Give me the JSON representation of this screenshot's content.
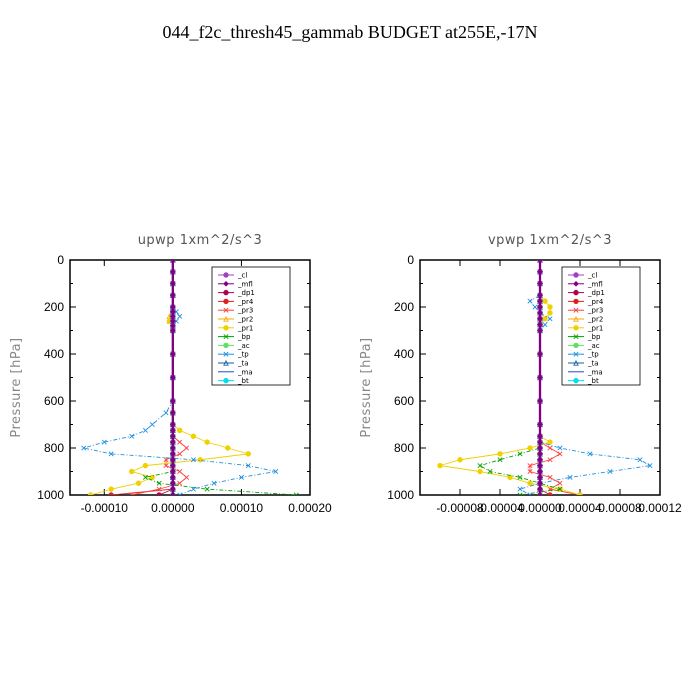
{
  "title": "044_f2c_thresh45_gammab  BUDGET at255E,-17N",
  "chart_data": [
    {
      "type": "line",
      "title": "upwp   1xm^2/s^3",
      "ylabel": "Pressure [hPa]",
      "xlabel": "",
      "xlim": [
        -0.00015,
        0.0002
      ],
      "ylim": [
        1000,
        0
      ],
      "xticks": [
        -0.0001,
        0.0,
        0.0001,
        0.0002
      ],
      "xtick_labels": [
        "-0.00010",
        "0.00000",
        "0.00010",
        "0.00020"
      ],
      "yticks": [
        0,
        200,
        400,
        600,
        800,
        1000
      ],
      "ytick_labels": [
        "0",
        "200",
        "400",
        "600",
        "800",
        "1000"
      ],
      "legend_position": "top-right",
      "y": [
        0,
        50,
        100,
        150,
        200,
        220,
        240,
        260,
        280,
        300,
        400,
        500,
        600,
        650,
        700,
        725,
        750,
        775,
        800,
        825,
        850,
        875,
        900,
        925,
        950,
        975,
        1000
      ],
      "series": [
        {
          "name": "_cl",
          "color": "#a040c0",
          "values": [
            0,
            0,
            0,
            0,
            0,
            0,
            0,
            0,
            0,
            0,
            0,
            0,
            0,
            0,
            0,
            0,
            0,
            0,
            0,
            0,
            0,
            0,
            0,
            0,
            0,
            0,
            0
          ]
        },
        {
          "name": "_mfl",
          "color": "#800080",
          "values": [
            0,
            0,
            0,
            0,
            0,
            0,
            0,
            0,
            0,
            0,
            0,
            0,
            0,
            0,
            0,
            0,
            0,
            0,
            0,
            0,
            0,
            0,
            0,
            0,
            0,
            0,
            0
          ]
        },
        {
          "name": "_dp1",
          "color": "#b00050",
          "values": [
            0,
            0,
            0,
            0,
            0,
            0,
            0,
            0,
            0,
            0,
            0,
            0,
            0,
            0,
            0,
            0,
            0,
            0,
            0,
            0,
            0,
            0,
            0,
            0,
            0,
            0,
            -2e-05
          ]
        },
        {
          "name": "_pr4",
          "color": "#e02020",
          "values": [
            0,
            0,
            0,
            0,
            0,
            0,
            0,
            0,
            0,
            0,
            0,
            0,
            0,
            0,
            0,
            0,
            0,
            0,
            0,
            0,
            0,
            0,
            0,
            0,
            0,
            0,
            -9e-05
          ]
        },
        {
          "name": "_pr3",
          "color": "#ff4040",
          "values": [
            0,
            0,
            0,
            0,
            0,
            0,
            0,
            0,
            0,
            0,
            0,
            0,
            0,
            0,
            0,
            0,
            0,
            1e-05,
            2e-05,
            1e-05,
            -1e-05,
            -1e-05,
            1e-05,
            2e-05,
            1e-05,
            -2e-05,
            -6e-05
          ]
        },
        {
          "name": "_pr2",
          "color": "#ffa500",
          "values": [
            0,
            0,
            0,
            0,
            0,
            0,
            -5e-06,
            -5e-06,
            0,
            0,
            0,
            0,
            0,
            0,
            0,
            0,
            0,
            0,
            0,
            0,
            0,
            0,
            0,
            0,
            0,
            0,
            0
          ]
        },
        {
          "name": "_pr1",
          "color": "#f0d000",
          "values": [
            0,
            0,
            0,
            0,
            0,
            0,
            0,
            -5e-06,
            0,
            0,
            0,
            0,
            0,
            0,
            0,
            1e-05,
            3e-05,
            5e-05,
            8e-05,
            0.00011,
            4e-05,
            -4e-05,
            -6e-05,
            -3e-05,
            -5e-05,
            -9e-05,
            -0.00012
          ]
        },
        {
          "name": "_bp",
          "color": "#00a000",
          "values": [
            0,
            0,
            0,
            0,
            0,
            0,
            0,
            0,
            0,
            0,
            0,
            0,
            0,
            0,
            0,
            0,
            0,
            0,
            0,
            0,
            0,
            0,
            0,
            -4e-05,
            -2e-05,
            5e-05,
            0.00018
          ]
        },
        {
          "name": "_ac",
          "color": "#60e060",
          "values": [
            0,
            0,
            0,
            0,
            0,
            0,
            0,
            0,
            0,
            0,
            0,
            0,
            0,
            0,
            0,
            0,
            0,
            0,
            0,
            0,
            0,
            0,
            0,
            0,
            0,
            0,
            0
          ]
        },
        {
          "name": "_tp",
          "color": "#2090e0",
          "values": [
            0,
            0,
            0,
            0,
            0,
            5e-06,
            1e-05,
            5e-06,
            0,
            0,
            0,
            0,
            0,
            -1e-05,
            -3e-05,
            -4e-05,
            -6e-05,
            -0.0001,
            -0.00013,
            -9e-05,
            3e-05,
            0.00011,
            0.00015,
            0.0001,
            6e-05,
            3e-05,
            1e-05
          ]
        },
        {
          "name": "_ta",
          "color": "#1060a0",
          "values": [
            0,
            0,
            0,
            0,
            0,
            0,
            0,
            0,
            0,
            0,
            0,
            0,
            0,
            0,
            0,
            0,
            0,
            0,
            0,
            0,
            0,
            0,
            0,
            0,
            0,
            0,
            0
          ]
        },
        {
          "name": "_ma",
          "color": "#2050c0",
          "values": [
            0,
            0,
            0,
            0,
            0,
            0,
            0,
            0,
            0,
            0,
            0,
            0,
            0,
            0,
            0,
            0,
            0,
            0,
            0,
            0,
            0,
            0,
            0,
            0,
            0,
            0,
            0
          ]
        },
        {
          "name": "_bt",
          "color": "#00e0f0",
          "values": [
            0,
            0,
            0,
            0,
            0,
            0,
            0,
            0,
            0,
            0,
            0,
            0,
            0,
            0,
            0,
            0,
            0,
            0,
            0,
            0,
            0,
            0,
            0,
            0,
            0,
            0,
            0
          ]
        }
      ]
    },
    {
      "type": "line",
      "title": "vpwp   1xm^2/s^3",
      "ylabel": "Pressure [hPa]",
      "xlabel": "",
      "xlim": [
        -0.00012,
        0.00012
      ],
      "ylim": [
        1000,
        0
      ],
      "xticks": [
        -8e-05,
        -4e-05,
        0.0,
        4e-05,
        8e-05,
        0.00012
      ],
      "xtick_labels": [
        "-0.00008",
        "-0.00004",
        "0.00000",
        "0.00004",
        "0.00008",
        "0.00012"
      ],
      "yticks": [
        0,
        200,
        400,
        600,
        800,
        1000
      ],
      "ytick_labels": [
        "0",
        "200",
        "400",
        "600",
        "800",
        "1000"
      ],
      "legend_position": "top-right",
      "y": [
        0,
        50,
        100,
        150,
        175,
        200,
        225,
        250,
        275,
        300,
        400,
        500,
        600,
        700,
        750,
        775,
        800,
        825,
        850,
        875,
        900,
        925,
        950,
        975,
        1000
      ],
      "series": [
        {
          "name": "_cl",
          "color": "#a040c0",
          "values": [
            0,
            0,
            0,
            0,
            0,
            0,
            0,
            0,
            0,
            0,
            0,
            0,
            0,
            0,
            0,
            0,
            0,
            0,
            0,
            0,
            0,
            0,
            0,
            0,
            0
          ]
        },
        {
          "name": "_mfl",
          "color": "#800080",
          "values": [
            0,
            0,
            0,
            0,
            0,
            0,
            0,
            0,
            0,
            0,
            0,
            0,
            0,
            0,
            0,
            0,
            0,
            0,
            0,
            0,
            0,
            0,
            0,
            0,
            0
          ]
        },
        {
          "name": "_dp1",
          "color": "#b00050",
          "values": [
            0,
            0,
            0,
            0,
            0,
            0,
            0,
            0,
            0,
            0,
            0,
            0,
            0,
            0,
            0,
            0,
            0,
            0,
            0,
            0,
            0,
            0,
            0,
            0,
            0
          ]
        },
        {
          "name": "_pr4",
          "color": "#e02020",
          "values": [
            0,
            0,
            0,
            0,
            0,
            0,
            0,
            0,
            0,
            0,
            0,
            0,
            0,
            0,
            0,
            0,
            0,
            0,
            0,
            0,
            0,
            0,
            0,
            0,
            1e-05
          ]
        },
        {
          "name": "_pr3",
          "color": "#ff4040",
          "values": [
            0,
            0,
            0,
            0,
            0,
            0,
            0,
            0,
            0,
            0,
            0,
            0,
            0,
            0,
            0,
            0,
            1e-05,
            2e-05,
            1e-05,
            -1e-05,
            -1e-05,
            1e-05,
            2e-05,
            1e-05,
            4e-05
          ]
        },
        {
          "name": "_pr2",
          "color": "#ffa500",
          "values": [
            0,
            0,
            0,
            0,
            0,
            0,
            0,
            0,
            0,
            0,
            0,
            0,
            0,
            0,
            0,
            0,
            0,
            0,
            0,
            0,
            0,
            0,
            0,
            0,
            0
          ]
        },
        {
          "name": "_pr1",
          "color": "#f0d000",
          "values": [
            0,
            0,
            0,
            0,
            5e-06,
            1e-05,
            1e-05,
            5e-06,
            0,
            0,
            0,
            0,
            0,
            0,
            0,
            1e-05,
            -1e-05,
            -4e-05,
            -8e-05,
            -0.0001,
            -6e-05,
            -3e-05,
            -1e-05,
            2e-05,
            4e-05
          ]
        },
        {
          "name": "_bp",
          "color": "#00a000",
          "values": [
            0,
            0,
            0,
            0,
            0,
            0,
            0,
            0,
            0,
            0,
            0,
            0,
            0,
            0,
            0,
            0,
            0,
            -2e-05,
            -4e-05,
            -6e-05,
            -5e-05,
            -2e-05,
            0,
            2e-05,
            -2e-05
          ]
        },
        {
          "name": "_ac",
          "color": "#60e060",
          "values": [
            0,
            0,
            0,
            0,
            0,
            0,
            0,
            0,
            0,
            0,
            0,
            0,
            0,
            0,
            0,
            0,
            0,
            0,
            0,
            0,
            0,
            0,
            0,
            0,
            0
          ]
        },
        {
          "name": "_tp",
          "color": "#2090e0",
          "values": [
            0,
            0,
            0,
            0,
            -1e-05,
            -5e-06,
            0,
            1e-05,
            5e-06,
            0,
            0,
            0,
            0,
            0,
            0,
            0,
            2e-05,
            5e-05,
            0.0001,
            0.00011,
            7e-05,
            3e-05,
            0,
            -2e-05,
            -1e-05
          ]
        },
        {
          "name": "_ta",
          "color": "#1060a0",
          "values": [
            0,
            0,
            0,
            0,
            0,
            0,
            0,
            0,
            0,
            0,
            0,
            0,
            0,
            0,
            0,
            0,
            0,
            0,
            0,
            0,
            0,
            0,
            0,
            0,
            0
          ]
        },
        {
          "name": "_ma",
          "color": "#2050c0",
          "values": [
            0,
            0,
            0,
            0,
            0,
            0,
            0,
            0,
            0,
            0,
            0,
            0,
            0,
            0,
            0,
            0,
            0,
            0,
            0,
            0,
            0,
            0,
            0,
            0,
            0
          ]
        },
        {
          "name": "_bt",
          "color": "#00e0f0",
          "values": [
            0,
            0,
            0,
            0,
            0,
            0,
            0,
            0,
            0,
            0,
            0,
            0,
            0,
            0,
            0,
            0,
            0,
            0,
            0,
            0,
            0,
            0,
            0,
            0,
            0
          ]
        }
      ]
    }
  ]
}
